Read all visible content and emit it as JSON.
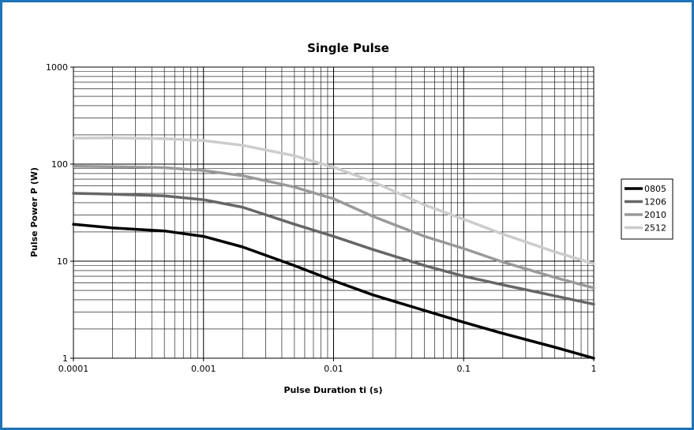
{
  "chart_data": {
    "type": "line",
    "title": "Single Pulse",
    "xlabel": "Pulse Duration ti (s)",
    "ylabel": "Pulse Power P (W)",
    "xscale": "log",
    "yscale": "log",
    "xlim": [
      0.0001,
      1
    ],
    "ylim": [
      1,
      1000
    ],
    "xticks": [
      0.0001,
      0.001,
      0.01,
      0.1,
      1
    ],
    "xtick_labels": [
      "0.0001",
      "0.001",
      "0.01",
      "0.1",
      "1"
    ],
    "yticks": [
      1,
      10,
      100,
      1000
    ],
    "ytick_labels": [
      "1",
      "10",
      "100",
      "1000"
    ],
    "grid": true,
    "legend_position": "right",
    "series": [
      {
        "name": "0805",
        "color": "#000000",
        "x": [
          0.0001,
          0.0002,
          0.0005,
          0.001,
          0.002,
          0.005,
          0.01,
          0.02,
          0.05,
          0.1,
          0.2,
          0.5,
          1
        ],
        "y": [
          24,
          22,
          20.5,
          18,
          14,
          9,
          6.3,
          4.5,
          3.1,
          2.35,
          1.8,
          1.3,
          1.0
        ]
      },
      {
        "name": "1206",
        "color": "#666666",
        "x": [
          0.0001,
          0.0002,
          0.0005,
          0.001,
          0.002,
          0.005,
          0.01,
          0.02,
          0.05,
          0.1,
          0.2,
          0.5,
          1
        ],
        "y": [
          50,
          49,
          47,
          43,
          36,
          24,
          18,
          13.2,
          9,
          7,
          5.7,
          4.4,
          3.6
        ]
      },
      {
        "name": "2010",
        "color": "#999999",
        "x": [
          0.0001,
          0.0002,
          0.0005,
          0.001,
          0.002,
          0.005,
          0.01,
          0.02,
          0.05,
          0.1,
          0.2,
          0.5,
          1
        ],
        "y": [
          95,
          94,
          92,
          86,
          76,
          58,
          44,
          29,
          18,
          13.5,
          9.8,
          6.8,
          5.3
        ]
      },
      {
        "name": "2512",
        "color": "#cccccc",
        "x": [
          0.0001,
          0.0002,
          0.0005,
          0.001,
          0.002,
          0.005,
          0.01,
          0.02,
          0.05,
          0.1,
          0.2,
          0.5,
          1
        ],
        "y": [
          185,
          186,
          183,
          175,
          156,
          122,
          93,
          66,
          38,
          27,
          19,
          12.5,
          9.4
        ]
      }
    ]
  }
}
